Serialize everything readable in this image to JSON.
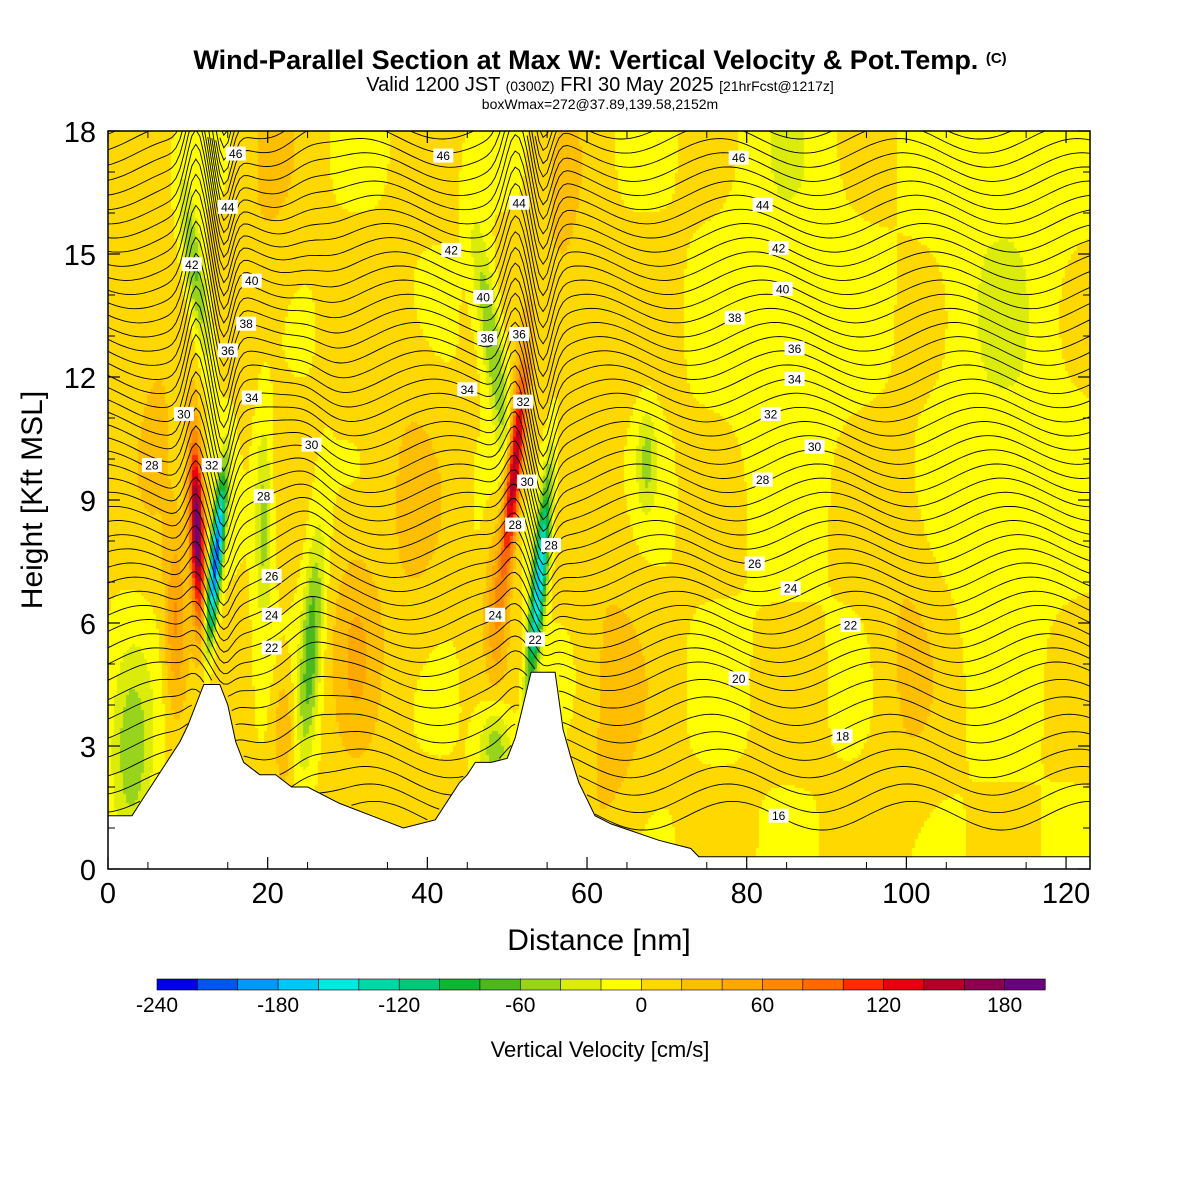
{
  "header": {
    "title_main": "Wind-Parallel Section at Max W: Vertical Velocity & Pot.Temp.",
    "title_copyright": "(C)",
    "valid_prefix": "Valid 1200 JST",
    "valid_utc": "(0300Z)",
    "valid_date": "FRI 30 May 2025",
    "forecast": "[21hrFcst@1217z]",
    "box_info": "boxWmax=272@37.89,139.58,2152m"
  },
  "chart_data": {
    "type": "heatmap",
    "xlabel": "Distance [nm]",
    "ylabel": "Height [Kft MSL]",
    "xlim": [
      0,
      123
    ],
    "ylim": [
      0,
      18
    ],
    "x_ticks": [
      0,
      20,
      40,
      60,
      80,
      100,
      120
    ],
    "y_ticks": [
      0,
      3,
      6,
      9,
      12,
      15,
      18
    ],
    "colorbar": {
      "title": "Vertical Velocity [cm/s]",
      "min": -240,
      "max": 220,
      "step": 20,
      "tick_values": [
        -240,
        -180,
        -120,
        -60,
        0,
        60,
        120,
        180
      ],
      "tick_labels": [
        "-240",
        "-180",
        "-120",
        "-60",
        "0",
        "60",
        "120",
        "180"
      ],
      "colors": [
        "#0000e6",
        "#0055ee",
        "#0099f2",
        "#00c8f6",
        "#00eae0",
        "#00d8a8",
        "#00c878",
        "#10b430",
        "#4cb820",
        "#98d41c",
        "#dcec0a",
        "#ffff00",
        "#ffd800",
        "#ffbf00",
        "#ffa800",
        "#ff8a00",
        "#ff6a00",
        "#ff2a00",
        "#e60010",
        "#b40028",
        "#8c0050",
        "#6a0080"
      ]
    },
    "terrain": [
      [
        0,
        1.3
      ],
      [
        3,
        1.3
      ],
      [
        4,
        1.6
      ],
      [
        5,
        1.9
      ],
      [
        6,
        2.2
      ],
      [
        7,
        2.5
      ],
      [
        8,
        2.8
      ],
      [
        9,
        3.1
      ],
      [
        10,
        3.5
      ],
      [
        11,
        4.0
      ],
      [
        12,
        4.5
      ],
      [
        14,
        4.5
      ],
      [
        15,
        4.0
      ],
      [
        16,
        3.1
      ],
      [
        17,
        2.6
      ],
      [
        19,
        2.3
      ],
      [
        21,
        2.3
      ],
      [
        23,
        2.0
      ],
      [
        25,
        2.0
      ],
      [
        29,
        1.6
      ],
      [
        33,
        1.3
      ],
      [
        37,
        1.0
      ],
      [
        41,
        1.2
      ],
      [
        42,
        1.5
      ],
      [
        43,
        1.8
      ],
      [
        44,
        2.1
      ],
      [
        45,
        2.3
      ],
      [
        46,
        2.6
      ],
      [
        48,
        2.6
      ],
      [
        50,
        2.7
      ],
      [
        51,
        3.2
      ],
      [
        52,
        4.0
      ],
      [
        53,
        4.8
      ],
      [
        56,
        4.8
      ],
      [
        57,
        3.4
      ],
      [
        58,
        2.7
      ],
      [
        59,
        2.1
      ],
      [
        60,
        1.7
      ],
      [
        61,
        1.3
      ],
      [
        63,
        1.1
      ],
      [
        69,
        0.7
      ],
      [
        73,
        0.5
      ],
      [
        74,
        0.3
      ],
      [
        80,
        0.3
      ],
      [
        123,
        0.3
      ]
    ],
    "updraft_cores": [
      {
        "x": 11.2,
        "y": 8.0,
        "peak_cm_s": 200
      },
      {
        "x": 51.5,
        "y": 9.3,
        "peak_cm_s": 170
      }
    ],
    "downdraft_cores": [
      {
        "x": 13.5,
        "y": 7.5,
        "peak_cm_s": -200
      },
      {
        "x": 54.0,
        "y": 7.0,
        "peak_cm_s": -160
      },
      {
        "x": 25.5,
        "y": 5.5,
        "peak_cm_s": -80
      }
    ],
    "isentropes": [
      {
        "label": "16",
        "label_pos": [
          84,
          1.3
        ]
      },
      {
        "label": "18",
        "label_pos": [
          92,
          3.25
        ]
      },
      {
        "label": "20",
        "label_pos": [
          79,
          4.65
        ]
      },
      {
        "label": "22",
        "label_pos": [
          93,
          5.95
        ]
      },
      {
        "label": "22",
        "label_pos": [
          20.5,
          5.4
        ]
      },
      {
        "label": "22",
        "label_pos": [
          53.5,
          5.6
        ]
      },
      {
        "label": "24",
        "label_pos": [
          85.5,
          6.85
        ]
      },
      {
        "label": "24",
        "label_pos": [
          20.5,
          6.2
        ]
      },
      {
        "label": "24",
        "label_pos": [
          48.5,
          6.2
        ]
      },
      {
        "label": "26",
        "label_pos": [
          81,
          7.45
        ]
      },
      {
        "label": "26",
        "label_pos": [
          20.5,
          7.15
        ]
      },
      {
        "label": "28",
        "label_pos": [
          82,
          9.5
        ]
      },
      {
        "label": "28",
        "label_pos": [
          5.5,
          9.85
        ]
      },
      {
        "label": "28",
        "label_pos": [
          19.5,
          9.1
        ]
      },
      {
        "label": "28",
        "label_pos": [
          51,
          8.4
        ]
      },
      {
        "label": "28",
        "label_pos": [
          55.5,
          7.9
        ]
      },
      {
        "label": "30",
        "label_pos": [
          88.5,
          10.3
        ]
      },
      {
        "label": "30",
        "label_pos": [
          9.5,
          11.1
        ]
      },
      {
        "label": "30",
        "label_pos": [
          25.5,
          10.35
        ]
      },
      {
        "label": "30",
        "label_pos": [
          52.5,
          9.45
        ]
      },
      {
        "label": "32",
        "label_pos": [
          83,
          11.1
        ]
      },
      {
        "label": "32",
        "label_pos": [
          13,
          9.85
        ]
      },
      {
        "label": "32",
        "label_pos": [
          52,
          11.4
        ]
      },
      {
        "label": "34",
        "label_pos": [
          86,
          11.95
        ]
      },
      {
        "label": "34",
        "label_pos": [
          18,
          11.5
        ]
      },
      {
        "label": "34",
        "label_pos": [
          45,
          11.7
        ]
      },
      {
        "label": "36",
        "label_pos": [
          86,
          12.7
        ]
      },
      {
        "label": "36",
        "label_pos": [
          15,
          12.65
        ]
      },
      {
        "label": "36",
        "label_pos": [
          47.5,
          12.95
        ]
      },
      {
        "label": "36",
        "label_pos": [
          51.5,
          13.05
        ]
      },
      {
        "label": "38",
        "label_pos": [
          78.5,
          13.45
        ]
      },
      {
        "label": "38",
        "label_pos": [
          17.3,
          13.3
        ]
      },
      {
        "label": "40",
        "label_pos": [
          84.5,
          14.15
        ]
      },
      {
        "label": "40",
        "label_pos": [
          18,
          14.35
        ]
      },
      {
        "label": "40",
        "label_pos": [
          47,
          13.95
        ]
      },
      {
        "label": "42",
        "label_pos": [
          84,
          15.15
        ]
      },
      {
        "label": "42",
        "label_pos": [
          10.5,
          14.75
        ]
      },
      {
        "label": "42",
        "label_pos": [
          43,
          15.1
        ]
      },
      {
        "label": "44",
        "label_pos": [
          82,
          16.2
        ]
      },
      {
        "label": "44",
        "label_pos": [
          15,
          16.15
        ]
      },
      {
        "label": "44",
        "label_pos": [
          51.5,
          16.25
        ]
      },
      {
        "label": "46",
        "label_pos": [
          79,
          17.35
        ]
      },
      {
        "label": "46",
        "label_pos": [
          16,
          17.45
        ]
      },
      {
        "label": "46",
        "label_pos": [
          42,
          17.4
        ]
      }
    ]
  }
}
